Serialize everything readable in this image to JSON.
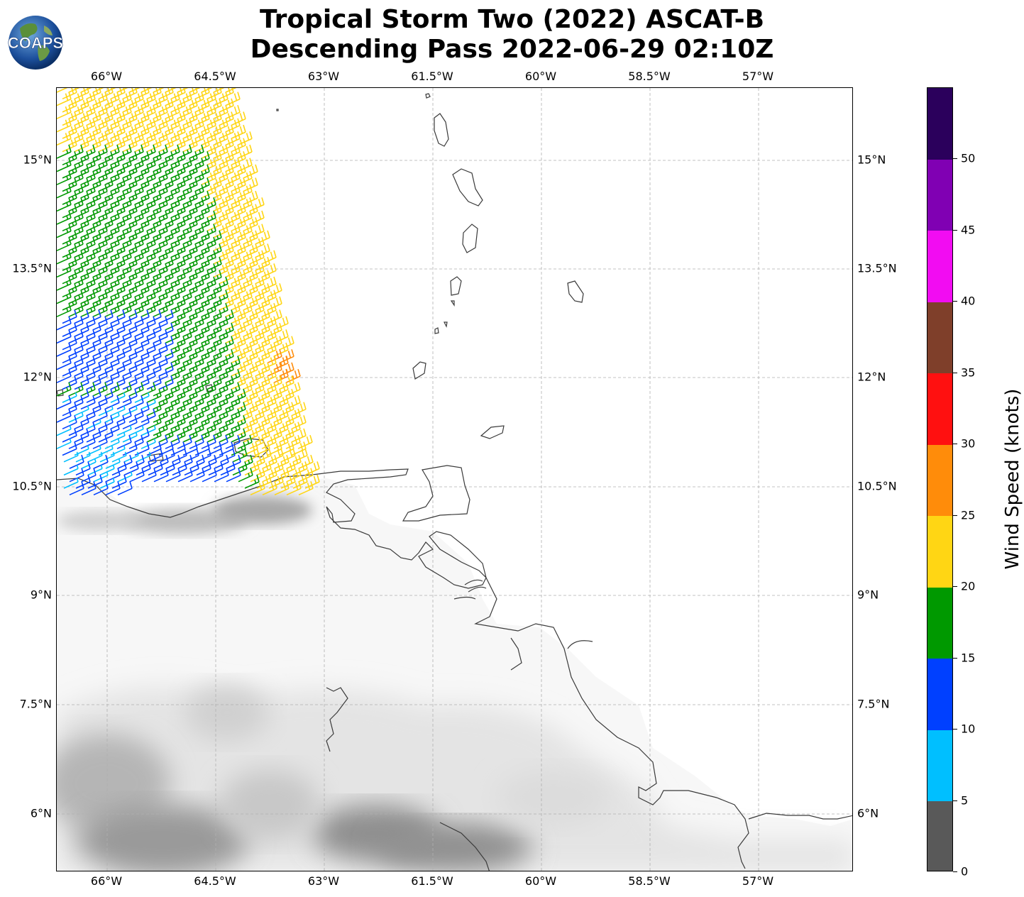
{
  "title": {
    "line1": "Tropical Storm Two (2022) ASCAT-B",
    "line2": "Descending Pass 2022-06-29 02:10Z"
  },
  "logo": {
    "text": "COAPS"
  },
  "map": {
    "lon_labels": [
      "66°W",
      "64.5°W",
      "63°W",
      "61.5°W",
      "60°W",
      "58.5°W",
      "57°W"
    ],
    "lat_labels": [
      "15°N",
      "13.5°N",
      "12°N",
      "10.5°N",
      "9°N",
      "7.5°N",
      "6°N"
    ],
    "lon_range": [
      -66.7,
      -55.7
    ],
    "lat_range": [
      5.2,
      16.0
    ],
    "gridlines": true,
    "land_shading": "grey terrain elevation",
    "wind_barbs": "ASCAT-B descending swath, NW corner, winds from east"
  },
  "colorbar": {
    "label": "Wind Speed (knots)",
    "ticks": [
      "0",
      "5",
      "10",
      "15",
      "20",
      "25",
      "30",
      "35",
      "40",
      "45",
      "50"
    ],
    "colors": [
      "#595959",
      "#00bfff",
      "#0040ff",
      "#009900",
      "#ffd614",
      "#ff8c0a",
      "#ff1010",
      "#7f3f2a",
      "#f20cf2",
      "#8000b3",
      "#2b005c"
    ],
    "placement": "right"
  }
}
